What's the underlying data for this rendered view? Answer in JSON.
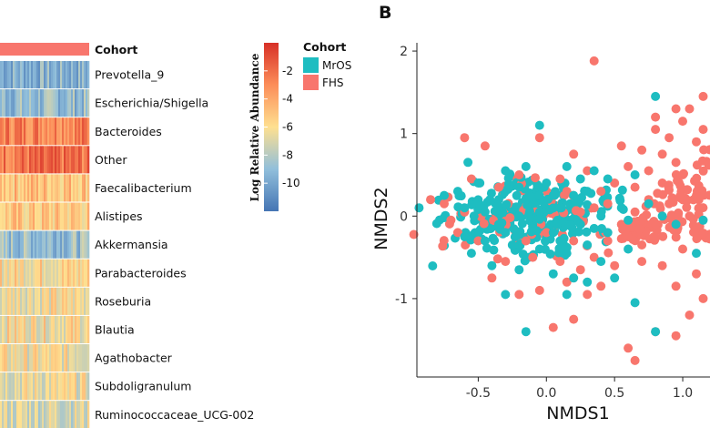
{
  "chart_data": [
    {
      "type": "heatmap",
      "title": "",
      "cohort_annotation_label": "Cohort",
      "rows": [
        "Prevotella_9",
        "Escherichia/Shigella",
        "Bacteroides",
        "Other",
        "Faecalibacterium",
        "Alistipes",
        "Akkermansia",
        "Parabacteroides",
        "Roseburia",
        "Blautia",
        "Agathobacter",
        "Subdoligranulum",
        "Ruminococcaceae_UCG-002"
      ],
      "row_mean_log_abundance": [
        -9.5,
        -9.0,
        -2.5,
        -2.2,
        -4.8,
        -5.3,
        -8.8,
        -5.8,
        -6.2,
        -6.0,
        -6.3,
        -6.5,
        -7.0
      ],
      "colorbar": {
        "title": "Log Relative Abundance",
        "ticks": [
          -2,
          -4,
          -6,
          -8,
          -10
        ],
        "range": [
          -12,
          0
        ],
        "colors": [
          "#4575b4",
          "#91bfdb",
          "#fee090",
          "#fc8d59",
          "#d73027"
        ]
      },
      "legend": {
        "title": "Cohort",
        "entries": [
          {
            "label": "MrOS",
            "color": "#1ebdc1"
          },
          {
            "label": "FHS",
            "color": "#f8766d"
          }
        ]
      }
    },
    {
      "type": "scatter",
      "panel_label": "B",
      "xlabel": "NMDS1",
      "ylabel": "NMDS2",
      "xlim": [
        -0.95,
        1.2
      ],
      "ylim": [
        -1.95,
        2.1
      ],
      "xticks": [
        -0.5,
        0.0,
        0.5,
        1.0
      ],
      "yticks": [
        -1,
        0,
        1,
        2
      ],
      "xtick_labels": [
        "-0.5",
        "0.0",
        "0.5",
        "1.0"
      ],
      "ytick_labels": [
        "-1",
        "0",
        "1",
        "2"
      ],
      "grid": false,
      "series": [
        {
          "name": "FHS",
          "color": "#f8766d",
          "points": [
            [
              0.35,
              1.88
            ],
            [
              -0.05,
              0.95
            ],
            [
              -0.6,
              0.95
            ],
            [
              -0.45,
              0.85
            ],
            [
              0.8,
              1.2
            ],
            [
              1.0,
              1.15
            ],
            [
              1.15,
              1.45
            ],
            [
              1.05,
              1.3
            ],
            [
              0.9,
              0.95
            ],
            [
              0.7,
              0.8
            ],
            [
              0.6,
              0.6
            ],
            [
              0.5,
              0.4
            ],
            [
              1.1,
              0.9
            ],
            [
              0.95,
              0.65
            ],
            [
              0.85,
              0.4
            ],
            [
              0.75,
              0.2
            ],
            [
              0.65,
              0.05
            ],
            [
              0.55,
              -0.1
            ],
            [
              0.45,
              -0.3
            ],
            [
              0.35,
              -0.5
            ],
            [
              0.25,
              -0.65
            ],
            [
              0.15,
              -0.8
            ],
            [
              -0.05,
              -0.9
            ],
            [
              -0.2,
              -0.95
            ],
            [
              -0.4,
              -0.75
            ],
            [
              -0.3,
              -0.55
            ],
            [
              -0.5,
              -0.3
            ],
            [
              -0.65,
              -0.2
            ],
            [
              -0.75,
              0.15
            ],
            [
              -0.85,
              0.2
            ],
            [
              0.2,
              -1.25
            ],
            [
              0.05,
              -1.35
            ],
            [
              0.6,
              -1.6
            ],
            [
              0.65,
              -1.75
            ],
            [
              0.8,
              -1.4
            ],
            [
              0.95,
              -1.45
            ],
            [
              1.05,
              -1.2
            ],
            [
              1.15,
              -1.0
            ],
            [
              1.1,
              -0.7
            ],
            [
              0.95,
              -0.85
            ],
            [
              1.0,
              -0.4
            ],
            [
              0.85,
              -0.6
            ],
            [
              0.7,
              -0.35
            ],
            [
              0.5,
              -0.6
            ],
            [
              0.4,
              -0.85
            ],
            [
              0.3,
              -0.95
            ],
            [
              0.1,
              -0.55
            ],
            [
              -0.1,
              -0.5
            ],
            [
              0.2,
              -0.3
            ],
            [
              0.4,
              0.3
            ],
            [
              0.3,
              0.55
            ],
            [
              0.2,
              0.75
            ],
            [
              1.15,
              1.05
            ],
            [
              0.95,
              1.3
            ],
            [
              0.8,
              1.05
            ],
            [
              0.55,
              0.85
            ],
            [
              0.65,
              0.35
            ],
            [
              0.75,
              0.55
            ],
            [
              0.85,
              0.75
            ],
            [
              1.0,
              0.5
            ],
            [
              1.1,
              0.25
            ],
            [
              1.05,
              0.0
            ],
            [
              0.9,
              0.15
            ],
            [
              0.8,
              -0.1
            ],
            [
              0.6,
              -0.25
            ],
            [
              0.7,
              -0.55
            ],
            [
              0.35,
              0.1
            ],
            [
              0.45,
              0.15
            ],
            [
              0.25,
              0.05
            ],
            [
              -0.35,
              0.35
            ],
            [
              -0.55,
              0.45
            ],
            [
              -0.2,
              0.5
            ],
            [
              0.1,
              0.45
            ],
            [
              0.15,
              0.3
            ],
            [
              -0.15,
              -0.3
            ],
            [
              0.0,
              -0.2
            ],
            [
              -0.7,
              -0.05
            ],
            [
              -0.6,
              0.05
            ]
          ]
        },
        {
          "name": "MrOS",
          "color": "#1ebdc1",
          "points": [
            [
              -0.05,
              1.1
            ],
            [
              0.8,
              1.45
            ],
            [
              0.35,
              0.55
            ],
            [
              0.15,
              0.6
            ],
            [
              -0.15,
              0.6
            ],
            [
              -0.3,
              0.55
            ],
            [
              0.3,
              0.3
            ],
            [
              0.45,
              0.45
            ],
            [
              -0.5,
              0.4
            ],
            [
              -0.65,
              0.3
            ],
            [
              -0.75,
              0.25
            ],
            [
              -0.6,
              0.1
            ],
            [
              -0.45,
              0.05
            ],
            [
              -0.35,
              0.2
            ],
            [
              -0.2,
              0.35
            ],
            [
              0.0,
              0.4
            ],
            [
              0.2,
              0.25
            ],
            [
              0.1,
              0.1
            ],
            [
              -0.05,
              0.05
            ],
            [
              -0.2,
              0.0
            ],
            [
              -0.35,
              -0.1
            ],
            [
              -0.1,
              -0.15
            ],
            [
              0.05,
              -0.2
            ],
            [
              0.25,
              -0.1
            ],
            [
              0.4,
              0.0
            ],
            [
              0.55,
              0.1
            ],
            [
              0.6,
              -0.05
            ],
            [
              0.45,
              -0.2
            ],
            [
              0.3,
              -0.35
            ],
            [
              0.15,
              -0.45
            ],
            [
              -0.05,
              -0.4
            ],
            [
              -0.25,
              -0.35
            ],
            [
              -0.45,
              -0.3
            ],
            [
              -0.55,
              -0.45
            ],
            [
              -0.4,
              -0.6
            ],
            [
              -0.2,
              -0.65
            ],
            [
              0.05,
              -0.7
            ],
            [
              0.2,
              -0.75
            ],
            [
              0.4,
              -0.55
            ],
            [
              0.5,
              -0.75
            ],
            [
              0.6,
              -0.4
            ],
            [
              -0.15,
              -1.4
            ],
            [
              -0.3,
              -0.95
            ],
            [
              0.15,
              -0.95
            ],
            [
              0.3,
              -0.8
            ],
            [
              0.65,
              -1.05
            ],
            [
              0.8,
              -1.4
            ],
            [
              1.1,
              -0.45
            ],
            [
              1.15,
              -0.05
            ],
            [
              0.95,
              -0.1
            ],
            [
              0.85,
              0.0
            ],
            [
              0.75,
              0.15
            ],
            [
              -0.6,
              -0.25
            ],
            [
              0.65,
              0.5
            ],
            [
              -0.15,
              0.2
            ],
            [
              0.05,
              0.25
            ],
            [
              0.25,
              0.45
            ],
            [
              -0.3,
              -0.2
            ],
            [
              0.35,
              -0.15
            ],
            [
              0.1,
              -0.3
            ]
          ]
        }
      ]
    }
  ]
}
